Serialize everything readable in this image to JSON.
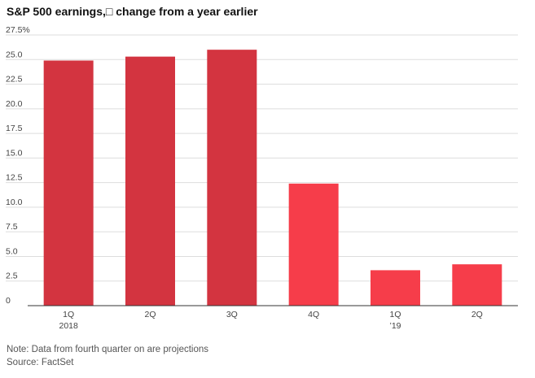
{
  "chart_data": {
    "type": "bar",
    "title": "S&P 500 earnings,□ change from a year earlier",
    "categories": [
      "1Q",
      "2Q",
      "3Q",
      "4Q",
      "1Q",
      "2Q"
    ],
    "category_sublabels": [
      "2018",
      "",
      "",
      "",
      "’19",
      ""
    ],
    "values": [
      24.9,
      25.3,
      26.0,
      12.4,
      3.6,
      4.2
    ],
    "ylim": [
      0,
      27.5
    ],
    "yticks": [
      "0",
      "2.5",
      "5.0",
      "7.5",
      "10.0",
      "12.5",
      "15.0",
      "17.5",
      "20.0",
      "22.5",
      "25.0",
      "27.5%"
    ],
    "grid": true,
    "colors": {
      "actual": "#d33440",
      "projection": "#f63d4a",
      "grid": "#dddddd",
      "axis": "#333333"
    },
    "projection_start_index": 3
  },
  "footer": {
    "note": "Note: Data from fourth quarter on are projections",
    "source": "Source: FactSet"
  }
}
